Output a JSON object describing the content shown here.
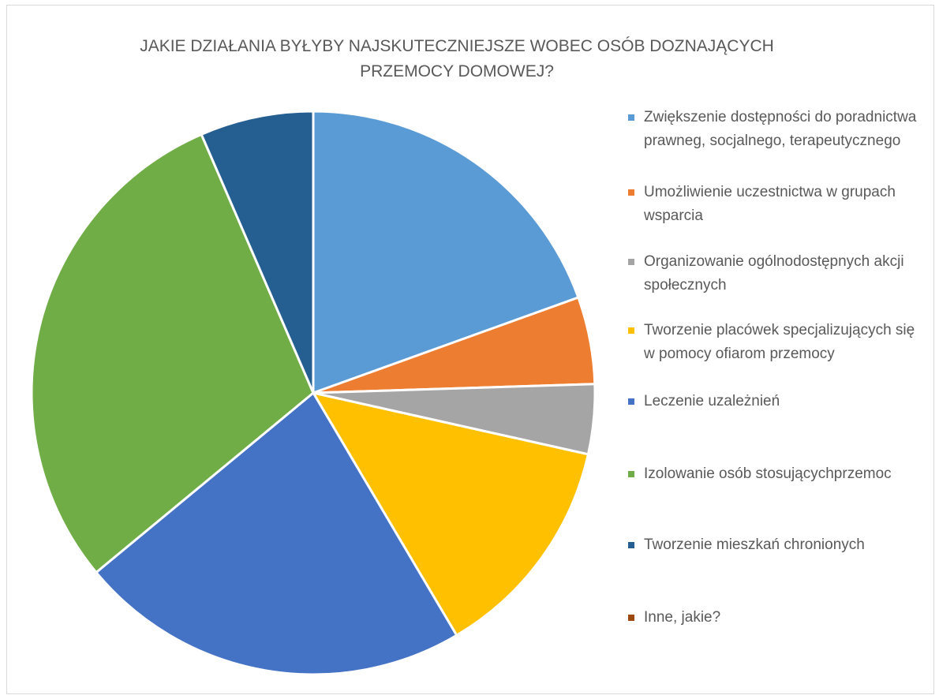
{
  "chart_data": {
    "type": "pie",
    "title": "JAKIE DZIAŁANIA BYŁYBY NAJSKUTECZNIEJSZE WOBEC OSÓB DOZNAJĄCYCH PRZEMOCY DOMOWEJ?",
    "title_lines": [
      "JAKIE DZIAŁANIA BYŁYBY NAJSKUTECZNIEJSZE WOBEC OSÓB DOZNAJĄCYCH",
      "PRZEMOCY DOMOWEJ?"
    ],
    "categories": [
      "Zwiększenie dostępności do poradnictwa prawneg, socjalnego, terapeutycznego",
      "Umożliwienie uczestnictwa w grupach wsparcia",
      "Organizowanie ogólnodostępnych akcji społecznych",
      "Tworzenie placówek specjalizujących się w pomocy ofiarom przemocy",
      "Leczenie uzależnień",
      "Izolowanie osób stosującychprzemoc",
      "Tworzenie mieszkań chronionych",
      "Inne, jakie?"
    ],
    "values": [
      19.5,
      5.0,
      4.0,
      13.0,
      22.5,
      29.5,
      6.5,
      0
    ],
    "colors": [
      "#5b9bd5",
      "#ed7d31",
      "#a5a5a5",
      "#ffc000",
      "#4472c4",
      "#70ad47",
      "#255e91",
      "#9e480e"
    ],
    "legend_position": "right"
  }
}
